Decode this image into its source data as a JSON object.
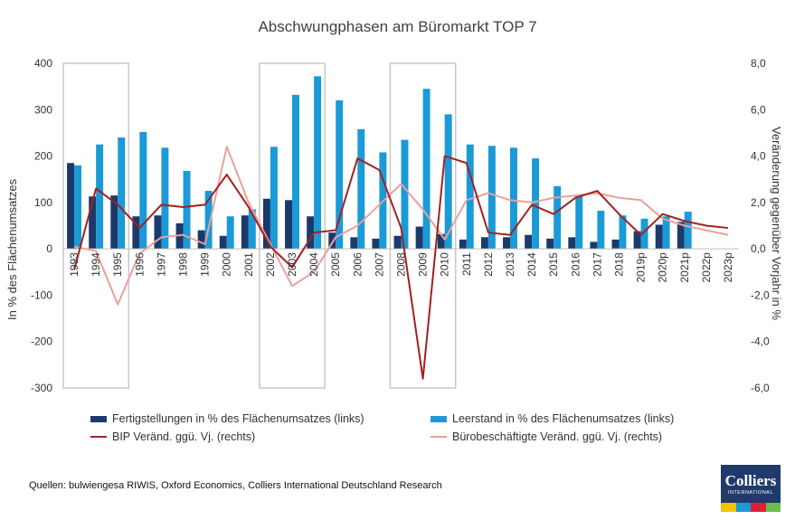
{
  "chart_data": {
    "type": "bar+line",
    "title": "Abschwungphasen am Büromarkt TOP 7",
    "ylabel_left": "In % des Flächenumsatzes",
    "ylabel_right": "Veränderung gegenüber Vorjahr in %",
    "categories": [
      "1993",
      "1994",
      "1995",
      "1996",
      "1997",
      "1998",
      "1999",
      "2000",
      "2001",
      "2002",
      "2003",
      "2004",
      "2005",
      "2006",
      "2007",
      "2008",
      "2009",
      "2010",
      "2011",
      "2012",
      "2013",
      "2014",
      "2015",
      "2016",
      "2017",
      "2018",
      "2019p",
      "2020p",
      "2021p",
      "2022p",
      "2023p"
    ],
    "ylim_left": [
      -300,
      400
    ],
    "yticks_left": [
      "400",
      "300",
      "200",
      "100",
      "0",
      "-100",
      "-200",
      "-300"
    ],
    "ylim_right": [
      -6,
      8
    ],
    "yticks_right": [
      "8,0",
      "6,0",
      "4,0",
      "2,0",
      "0,0",
      "-2,0",
      "-4,0",
      "-6,0"
    ],
    "highlight_periods": [
      [
        "1993",
        "1995"
      ],
      [
        "2002",
        "2004"
      ],
      [
        "2008",
        "2010"
      ]
    ],
    "series": [
      {
        "name": "Fertigstellungen in % des Flächenumsatzes (links)",
        "axis": "left",
        "kind": "bar",
        "color": "#1b3a6b",
        "values": [
          185,
          113,
          115,
          70,
          72,
          55,
          40,
          28,
          72,
          108,
          105,
          70,
          35,
          25,
          22,
          28,
          48,
          32,
          20,
          25,
          25,
          30,
          22,
          25,
          15,
          20,
          38,
          52,
          58,
          null,
          null
        ]
      },
      {
        "name": "Leerstand in % des Flächenumsatzes (links)",
        "axis": "left",
        "kind": "bar",
        "color": "#1a9ad6",
        "values": [
          180,
          225,
          240,
          252,
          218,
          168,
          125,
          70,
          85,
          220,
          332,
          372,
          320,
          258,
          208,
          235,
          345,
          290,
          225,
          222,
          218,
          195,
          135,
          115,
          82,
          72,
          65,
          70,
          80,
          null,
          null
        ]
      },
      {
        "name": "BIP Veränd. ggü. Vj. (rechts)",
        "axis": "right",
        "kind": "line",
        "color": "#a32020",
        "values": [
          -0.9,
          2.6,
          1.9,
          0.9,
          1.9,
          1.8,
          1.9,
          3.2,
          1.8,
          0.1,
          -0.8,
          0.7,
          0.8,
          3.9,
          3.4,
          0.9,
          -5.6,
          4.0,
          3.7,
          0.7,
          0.6,
          1.9,
          1.5,
          2.2,
          2.5,
          1.5,
          0.6,
          1.5,
          1.2,
          1.0,
          0.9
        ]
      },
      {
        "name": "Bürobeschäftigte Veränd. ggü. Vj. (rechts)",
        "axis": "right",
        "kind": "line",
        "color": "#eba09c",
        "values": [
          0.1,
          -0.1,
          -2.4,
          -0.2,
          0.5,
          0.6,
          0.2,
          4.4,
          2.0,
          0.2,
          -1.6,
          -1.0,
          0.5,
          1.0,
          1.9,
          2.8,
          1.7,
          0.4,
          2.1,
          2.4,
          2.1,
          2.0,
          2.2,
          2.3,
          2.4,
          2.2,
          2.1,
          1.3,
          1.0,
          0.8,
          0.6
        ]
      }
    ]
  },
  "source": "Quellen: bulwiengesa RIWIS, Oxford Economics, Colliers International Deutschland Research",
  "logo": {
    "name": "Colliers",
    "subtitle": "INTERNATIONAL",
    "stripes": [
      "#f2c300",
      "#1a9ad6",
      "#e01e37",
      "#6abf4b"
    ]
  }
}
